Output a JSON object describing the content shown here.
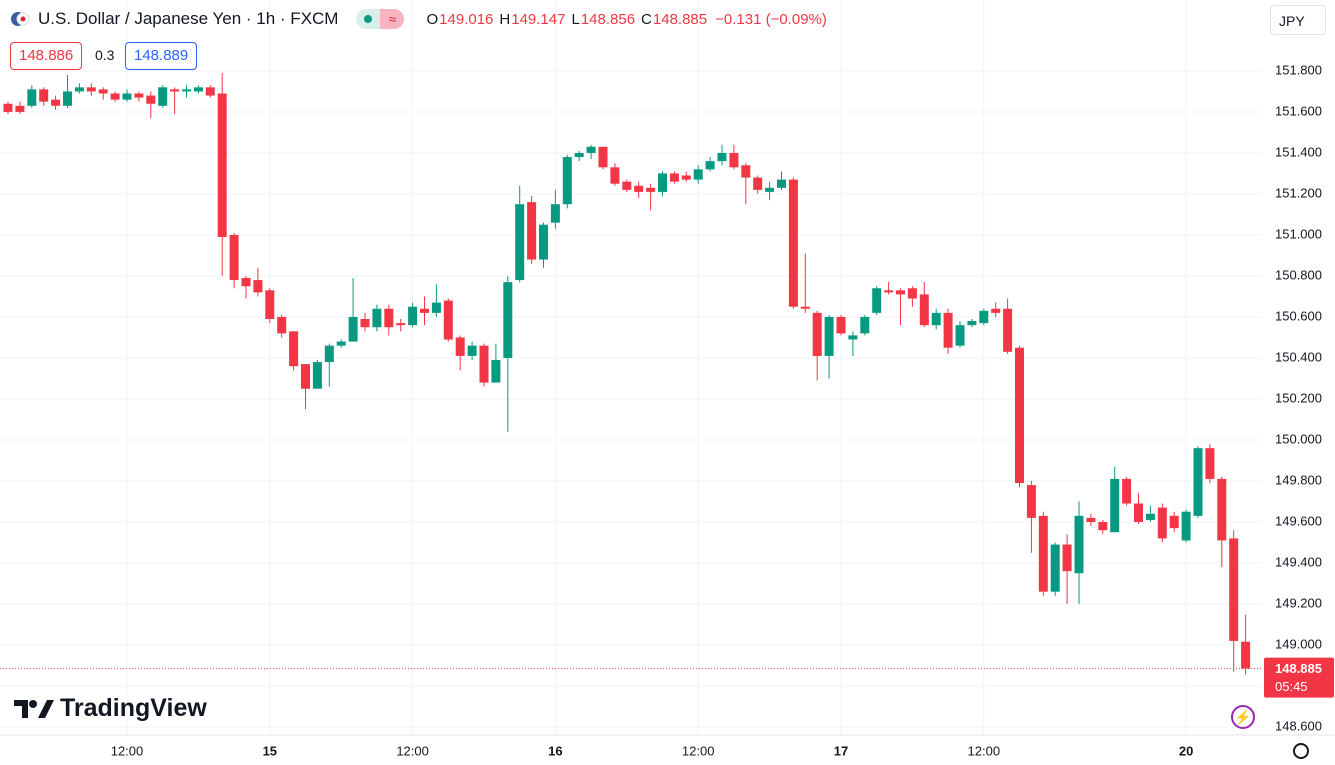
{
  "chart_data": {
    "type": "candlestick",
    "title": "U.S. Dollar / Japanese Yen · 1h · FXCM",
    "ohlc_labels": [
      "O",
      "H",
      "L",
      "C"
    ],
    "change": "−0.131 (−0.09%)",
    "bid": 148.886,
    "spread": 0.3,
    "ask": 148.889,
    "currency": "JPY",
    "countdown": "05:45",
    "brand": "TradingView",
    "up_color": "#089981",
    "down_color": "#f23645",
    "ylim": [
      148.561,
      152.146
    ],
    "yticks": [
      {
        "value": 148.6,
        "label": "148.600"
      },
      {
        "value": 148.8,
        "label": "148.800"
      },
      {
        "value": 149.0,
        "label": "149.000"
      },
      {
        "value": 149.2,
        "label": "149.200"
      },
      {
        "value": 149.4,
        "label": "149.400"
      },
      {
        "value": 149.6,
        "label": "149.600"
      },
      {
        "value": 149.8,
        "label": "149.800"
      },
      {
        "value": 150.0,
        "label": "150.000"
      },
      {
        "value": 150.2,
        "label": "150.200"
      },
      {
        "value": 150.4,
        "label": "150.400"
      },
      {
        "value": 150.6,
        "label": "150.600"
      },
      {
        "value": 150.8,
        "label": "150.800"
      },
      {
        "value": 151.0,
        "label": "151.000"
      },
      {
        "value": 151.2,
        "label": "151.200"
      },
      {
        "value": 151.4,
        "label": "151.400"
      },
      {
        "value": 151.6,
        "label": "151.600"
      },
      {
        "value": 151.8,
        "label": "151.800"
      }
    ],
    "categories": [
      null,
      null,
      null,
      null,
      null,
      null,
      null,
      null,
      null,
      null,
      "12:00",
      null,
      null,
      null,
      null,
      null,
      null,
      null,
      null,
      null,
      null,
      null,
      "15",
      null,
      null,
      null,
      null,
      null,
      null,
      null,
      null,
      null,
      null,
      null,
      "12:00",
      null,
      null,
      null,
      null,
      null,
      null,
      null,
      null,
      null,
      null,
      null,
      "16",
      null,
      null,
      null,
      null,
      null,
      null,
      null,
      null,
      null,
      null,
      null,
      "12:00",
      null,
      null,
      null,
      null,
      null,
      null,
      null,
      null,
      null,
      null,
      null,
      "17",
      null,
      null,
      null,
      null,
      null,
      null,
      null,
      null,
      null,
      null,
      null,
      "12:00",
      null,
      null,
      null,
      null,
      null,
      null,
      null,
      null,
      null,
      null,
      null,
      null,
      null,
      null,
      null,
      null,
      "20",
      null,
      null,
      null,
      null,
      null
    ],
    "open": [
      151.64,
      151.63,
      151.63,
      151.71,
      151.66,
      151.63,
      151.7,
      151.72,
      151.71,
      151.69,
      151.66,
      151.69,
      151.68,
      151.63,
      151.71,
      151.7,
      151.7,
      151.72,
      151.69,
      151.0,
      150.79,
      150.78,
      150.73,
      150.6,
      150.53,
      150.37,
      150.25,
      150.38,
      150.46,
      150.48,
      150.59,
      150.55,
      150.64,
      150.57,
      150.56,
      150.64,
      150.62,
      150.68,
      150.5,
      150.41,
      150.46,
      150.28,
      150.4,
      150.78,
      151.16,
      150.88,
      151.06,
      151.15,
      151.38,
      151.4,
      151.43,
      151.33,
      151.26,
      151.24,
      151.23,
      151.21,
      151.3,
      151.29,
      151.27,
      151.32,
      151.36,
      151.4,
      151.34,
      151.28,
      151.21,
      151.23,
      151.27,
      150.65,
      150.62,
      150.41,
      150.6,
      150.49,
      150.52,
      150.62,
      150.73,
      150.73,
      150.74,
      150.71,
      150.56,
      150.62,
      150.46,
      150.56,
      150.57,
      150.64,
      150.64,
      150.45,
      149.78,
      149.63,
      149.26,
      149.49,
      149.35,
      149.62,
      149.6,
      149.55,
      149.81,
      149.69,
      149.61,
      149.67,
      149.63,
      149.51,
      149.63,
      149.96,
      149.81,
      149.52,
      149.016
    ],
    "high": [
      151.65,
      151.65,
      151.73,
      151.72,
      151.68,
      151.78,
      151.74,
      151.74,
      151.72,
      151.7,
      151.71,
      151.7,
      151.7,
      151.73,
      151.72,
      151.73,
      151.73,
      151.73,
      151.79,
      151.01,
      150.8,
      150.84,
      150.74,
      150.61,
      150.53,
      150.37,
      150.39,
      150.47,
      150.49,
      150.79,
      150.62,
      150.66,
      150.66,
      150.59,
      150.67,
      150.7,
      150.76,
      150.69,
      150.51,
      150.48,
      150.47,
      150.47,
      150.8,
      151.24,
      151.19,
      151.06,
      151.22,
      151.39,
      151.41,
      151.44,
      151.43,
      151.35,
      151.27,
      151.26,
      151.25,
      151.31,
      151.31,
      151.31,
      151.34,
      151.38,
      151.44,
      151.44,
      151.35,
      151.29,
      151.26,
      151.31,
      151.28,
      150.91,
      150.63,
      150.61,
      150.61,
      150.53,
      150.61,
      150.75,
      150.77,
      150.74,
      150.75,
      150.77,
      150.64,
      150.64,
      150.58,
      150.59,
      150.64,
      150.67,
      150.69,
      150.46,
      149.8,
      149.65,
      149.5,
      149.54,
      149.7,
      149.64,
      149.61,
      149.87,
      149.82,
      149.74,
      149.68,
      149.69,
      149.65,
      149.66,
      149.97,
      149.98,
      149.82,
      149.56,
      149.147
    ],
    "low": [
      151.59,
      151.59,
      151.62,
      151.63,
      151.61,
      151.62,
      151.69,
      151.68,
      151.66,
      151.65,
      151.65,
      151.65,
      151.57,
      151.62,
      151.59,
      151.67,
      151.69,
      151.67,
      150.8,
      150.74,
      150.69,
      150.7,
      150.57,
      150.5,
      150.34,
      150.15,
      150.25,
      150.26,
      150.45,
      150.48,
      150.53,
      150.53,
      150.51,
      150.53,
      150.55,
      150.56,
      150.6,
      150.48,
      150.34,
      150.39,
      150.26,
      150.28,
      150.04,
      150.77,
      150.86,
      150.84,
      151.03,
      151.13,
      151.36,
      151.37,
      151.32,
      151.24,
      151.21,
      151.18,
      151.12,
      151.19,
      151.25,
      151.26,
      151.25,
      151.31,
      151.34,
      151.32,
      151.15,
      151.2,
      151.17,
      151.22,
      150.64,
      150.62,
      150.29,
      150.3,
      150.51,
      150.41,
      150.51,
      150.61,
      150.71,
      150.56,
      150.65,
      150.55,
      150.54,
      150.42,
      150.45,
      150.55,
      150.56,
      150.6,
      150.42,
      149.77,
      149.45,
      149.24,
      149.24,
      149.2,
      149.2,
      149.58,
      149.54,
      149.55,
      149.68,
      149.59,
      149.6,
      149.5,
      149.55,
      149.5,
      149.62,
      149.79,
      149.38,
      148.87,
      148.856
    ],
    "close": [
      151.6,
      151.6,
      151.71,
      151.65,
      151.63,
      151.7,
      151.72,
      151.7,
      151.69,
      151.66,
      151.69,
      151.67,
      151.64,
      151.72,
      151.7,
      151.71,
      151.72,
      151.68,
      150.99,
      150.78,
      150.75,
      150.72,
      150.59,
      150.52,
      150.36,
      150.25,
      150.38,
      150.46,
      150.48,
      150.6,
      150.55,
      150.64,
      150.55,
      150.56,
      150.65,
      150.62,
      150.67,
      150.49,
      150.41,
      150.46,
      150.28,
      150.39,
      150.77,
      151.15,
      150.88,
      151.05,
      151.15,
      151.38,
      151.4,
      151.43,
      151.33,
      151.25,
      151.22,
      151.21,
      151.21,
      151.3,
      151.26,
      151.27,
      151.32,
      151.36,
      151.4,
      151.33,
      151.28,
      151.22,
      151.23,
      151.27,
      150.65,
      150.64,
      150.41,
      150.6,
      150.52,
      150.51,
      150.6,
      150.74,
      150.72,
      150.71,
      150.69,
      150.56,
      150.62,
      150.45,
      150.56,
      150.58,
      150.63,
      150.62,
      150.43,
      149.79,
      149.62,
      149.26,
      149.49,
      149.36,
      149.63,
      149.6,
      149.56,
      149.81,
      149.69,
      149.6,
      149.64,
      149.52,
      149.57,
      149.65,
      149.96,
      149.81,
      149.51,
      149.02,
      148.885
    ]
  }
}
